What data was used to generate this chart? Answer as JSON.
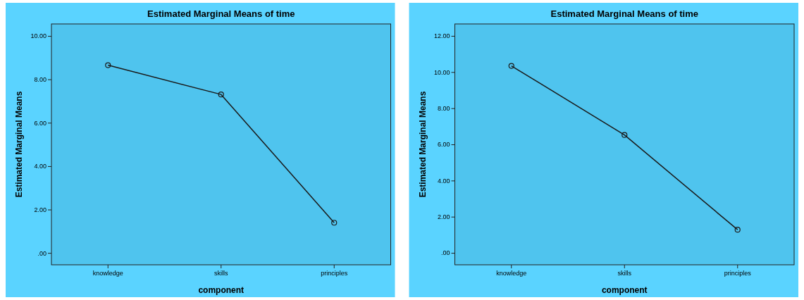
{
  "chart_data": [
    {
      "type": "line",
      "title": "Estimated Marginal Means of time",
      "xlabel": "component",
      "ylabel": "Estimated Marginal Means",
      "categories": [
        "knowledge",
        "skills",
        "principles"
      ],
      "series": [
        {
          "color": "#1a1a1a",
          "values": [
            8.67,
            7.32,
            1.41
          ]
        }
      ],
      "ylim": [
        -0.53,
        10.57
      ],
      "yticks": [
        {
          "value": 0,
          "label": ".00"
        },
        {
          "value": 2,
          "label": "2.00"
        },
        {
          "value": 4,
          "label": "4.00"
        },
        {
          "value": 6,
          "label": "6.00"
        },
        {
          "value": 8,
          "label": "8.00"
        },
        {
          "value": 10,
          "label": "10.00"
        }
      ],
      "marker": "circle",
      "grid": false
    },
    {
      "type": "line",
      "title": "Estimated Marginal Means of time",
      "xlabel": "component",
      "ylabel": "Estimated Marginal Means",
      "categories": [
        "knowledge",
        "skills",
        "principles"
      ],
      "series": [
        {
          "color": "#1a1a1a",
          "values": [
            10.36,
            6.54,
            1.3
          ]
        }
      ],
      "ylim": [
        -0.64,
        12.68
      ],
      "yticks": [
        {
          "value": 0,
          "label": ".00"
        },
        {
          "value": 2,
          "label": "2.00"
        },
        {
          "value": 4,
          "label": "4.00"
        },
        {
          "value": 6,
          "label": "6.00"
        },
        {
          "value": 8,
          "label": "8.00"
        },
        {
          "value": 10,
          "label": "10.00"
        },
        {
          "value": 12,
          "label": "12.00"
        }
      ],
      "marker": "circle",
      "grid": false
    }
  ]
}
